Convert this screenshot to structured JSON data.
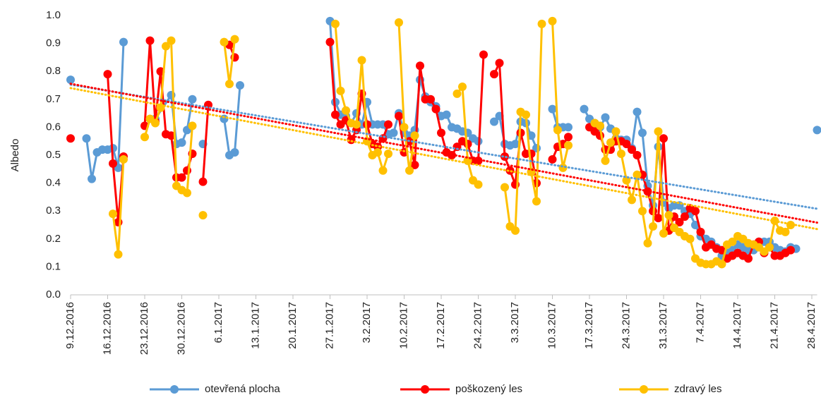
{
  "chart_data": {
    "type": "line",
    "y_label": "Albedo",
    "xlim": [
      "9.12.2016",
      "29.4.2017"
    ],
    "xticks": [
      "9.12.2016",
      "16.12.2016",
      "23.12.2016",
      "30.12.2016",
      "6.1.2017",
      "13.1.2017",
      "20.1.2017",
      "27.1.2017",
      "3.2.2017",
      "10.2.2017",
      "17.2.2017",
      "24.2.2017",
      "3.3.2017",
      "10.3.2017",
      "17.3.2017",
      "24.3.2017",
      "31.3.2017",
      "7.4.2017",
      "14.4.2017",
      "21.4.2017",
      "28.4.2017"
    ],
    "ylim": [
      0,
      1
    ],
    "yticks": [
      {
        "value": 0,
        "label": "0.0"
      },
      0.1,
      0.2,
      0.3,
      0.4,
      0.5,
      0.6,
      0.7,
      0.8,
      0.9,
      {
        "value": 1,
        "label": "1.0"
      }
    ],
    "grid": false,
    "legend": "bottom",
    "trendline": "linear",
    "series": [
      {
        "name": "otevřená plocha",
        "color": "#5b9bd5",
        "x": [
          "9.12.2016",
          "10.12.2016",
          "12.12.2016",
          "13.12.2016",
          "14.12.2016",
          "15.12.2016",
          "16.12.2016",
          "17.12.2016",
          "18.12.2016",
          "19.12.2016",
          "20.12.2016",
          "25.12.2016",
          "28.12.2016",
          "29.12.2016",
          "30.12.2016",
          "31.12.2016",
          "1.1.2017",
          "2.1.2017",
          "3.1.2017",
          "4.1.2017",
          "7.1.2017",
          "8.1.2017",
          "9.1.2017",
          "10.1.2017",
          "11.1.2017",
          "27.1.2017",
          "28.1.2017",
          "29.1.2017",
          "30.1.2017",
          "31.1.2017",
          "1.2.2017",
          "2.2.2017",
          "3.2.2017",
          "4.2.2017",
          "5.2.2017",
          "6.2.2017",
          "7.2.2017",
          "8.2.2017",
          "9.2.2017",
          "10.2.2017",
          "11.2.2017",
          "12.2.2017",
          "13.2.2017",
          "14.2.2017",
          "15.2.2017",
          "16.2.2017",
          "17.2.2017",
          "18.2.2017",
          "19.2.2017",
          "20.2.2017",
          "21.2.2017",
          "22.2.2017",
          "23.2.2017",
          "24.2.2017",
          "25.2.2017",
          "27.2.2017",
          "28.2.2017",
          "1.3.2017",
          "2.3.2017",
          "3.3.2017",
          "4.3.2017",
          "5.3.2017",
          "6.3.2017",
          "7.3.2017",
          "8.3.2017",
          "10.3.2017",
          "11.3.2017",
          "12.3.2017",
          "13.3.2017",
          "14.3.2017",
          "16.3.2017",
          "17.3.2017",
          "18.3.2017",
          "19.3.2017",
          "20.3.2017",
          "21.3.2017",
          "22.3.2017",
          "23.3.2017",
          "24.3.2017",
          "25.3.2017",
          "26.3.2017",
          "27.3.2017",
          "28.3.2017",
          "29.3.2017",
          "30.3.2017",
          "31.3.2017",
          "1.4.2017",
          "2.4.2017",
          "3.4.2017",
          "4.4.2017",
          "5.4.2017",
          "6.4.2017",
          "7.4.2017",
          "8.4.2017",
          "9.4.2017",
          "10.4.2017",
          "11.4.2017",
          "12.4.2017",
          "13.4.2017",
          "14.4.2017",
          "15.4.2017",
          "16.4.2017",
          "17.4.2017",
          "18.4.2017",
          "19.4.2017",
          "20.4.2017",
          "21.4.2017",
          "22.4.2017",
          "23.4.2017",
          "24.4.2017",
          "25.4.2017",
          "26.4.2017",
          "29.4.2017"
        ],
        "values": [
          0.77,
          null,
          0.56,
          0.415,
          0.51,
          0.52,
          0.52,
          0.525,
          0.455,
          0.905,
          null,
          0.63,
          0.715,
          0.54,
          0.545,
          0.59,
          0.7,
          null,
          0.54,
          null,
          0.63,
          0.5,
          0.51,
          0.75,
          null,
          0.98,
          0.69,
          0.645,
          0.64,
          0.615,
          0.65,
          0.61,
          0.69,
          0.61,
          0.61,
          0.61,
          0.575,
          0.58,
          0.65,
          0.58,
          0.57,
          0.59,
          0.77,
          0.71,
          0.69,
          0.675,
          0.64,
          0.645,
          0.6,
          0.595,
          0.585,
          0.58,
          0.56,
          0.55,
          null,
          0.62,
          0.64,
          0.54,
          0.535,
          0.54,
          0.62,
          0.615,
          0.57,
          0.525,
          null,
          0.665,
          0.6,
          0.6,
          0.6,
          null,
          0.665,
          0.63,
          0.615,
          0.6,
          0.635,
          0.595,
          0.56,
          0.555,
          0.555,
          0.525,
          0.655,
          0.58,
          0.39,
          0.32,
          0.53,
          0.33,
          0.31,
          0.32,
          0.32,
          0.3,
          0.29,
          0.25,
          0.21,
          0.2,
          0.19,
          0.17,
          0.14,
          0.15,
          0.16,
          0.18,
          0.17,
          0.16,
          0.16,
          0.19,
          0.19,
          0.19,
          0.17,
          0.16,
          0.155,
          0.17,
          0.165,
          null,
          0.59
        ]
      },
      {
        "name": "poškozený les",
        "color": "#ff0000",
        "x": [
          "9.12.2016",
          "10.12.2016",
          "16.12.2016",
          "17.12.2016",
          "18.12.2016",
          "19.12.2016",
          "20.12.2016",
          "23.12.2016",
          "24.12.2016",
          "25.12.2016",
          "26.12.2016",
          "27.12.2016",
          "28.12.2016",
          "29.12.2016",
          "30.12.2016",
          "31.12.2016",
          "1.1.2017",
          "2.1.2017",
          "3.1.2017",
          "4.1.2017",
          "5.1.2017",
          "8.1.2017",
          "9.1.2017",
          "10.1.2017",
          "27.1.2017",
          "28.1.2017",
          "29.1.2017",
          "30.1.2017",
          "31.1.2017",
          "1.2.2017",
          "2.2.2017",
          "3.2.2017",
          "4.2.2017",
          "5.2.2017",
          "6.2.2017",
          "7.2.2017",
          "8.2.2017",
          "9.2.2017",
          "10.2.2017",
          "11.2.2017",
          "12.2.2017",
          "13.2.2017",
          "14.2.2017",
          "15.2.2017",
          "16.2.2017",
          "17.2.2017",
          "18.2.2017",
          "19.2.2017",
          "20.2.2017",
          "21.2.2017",
          "22.2.2017",
          "23.2.2017",
          "24.2.2017",
          "25.2.2017",
          "26.2.2017",
          "27.2.2017",
          "28.2.2017",
          "1.3.2017",
          "2.3.2017",
          "3.3.2017",
          "4.3.2017",
          "5.3.2017",
          "6.3.2017",
          "7.3.2017",
          "8.3.2017",
          "10.3.2017",
          "11.3.2017",
          "12.3.2017",
          "13.3.2017",
          "14.3.2017",
          "17.3.2017",
          "18.3.2017",
          "19.3.2017",
          "20.3.2017",
          "21.3.2017",
          "22.3.2017",
          "23.3.2017",
          "24.3.2017",
          "25.3.2017",
          "26.3.2017",
          "27.3.2017",
          "28.3.2017",
          "29.3.2017",
          "30.3.2017",
          "31.3.2017",
          "1.4.2017",
          "2.4.2017",
          "3.4.2017",
          "4.4.2017",
          "5.4.2017",
          "6.4.2017",
          "7.4.2017",
          "8.4.2017",
          "9.4.2017",
          "10.4.2017",
          "11.4.2017",
          "12.4.2017",
          "13.4.2017",
          "14.4.2017",
          "15.4.2017",
          "16.4.2017",
          "17.4.2017",
          "18.4.2017",
          "19.4.2017",
          "20.4.2017",
          "21.4.2017",
          "22.4.2017",
          "23.4.2017",
          "24.4.2017"
        ],
        "values": [
          0.56,
          null,
          0.79,
          0.47,
          0.26,
          0.495,
          null,
          0.605,
          0.91,
          0.62,
          0.8,
          0.575,
          0.57,
          0.42,
          0.42,
          0.445,
          0.505,
          null,
          0.405,
          0.68,
          null,
          0.895,
          0.85,
          null,
          0.905,
          0.645,
          0.61,
          0.625,
          0.555,
          0.59,
          0.72,
          0.61,
          0.54,
          0.53,
          0.56,
          0.61,
          null,
          0.64,
          0.51,
          0.55,
          0.465,
          0.82,
          0.7,
          0.7,
          0.665,
          0.58,
          0.51,
          0.5,
          0.53,
          0.55,
          0.54,
          0.48,
          0.48,
          0.86,
          null,
          0.79,
          0.83,
          0.495,
          0.445,
          0.395,
          0.58,
          0.505,
          0.505,
          0.4,
          null,
          0.485,
          0.53,
          0.54,
          0.565,
          null,
          0.6,
          0.585,
          0.57,
          0.52,
          0.52,
          0.55,
          0.55,
          0.54,
          0.52,
          0.5,
          0.43,
          0.37,
          0.3,
          0.275,
          0.56,
          0.23,
          0.28,
          0.26,
          0.28,
          0.31,
          0.3,
          0.225,
          0.17,
          0.18,
          0.165,
          0.16,
          0.13,
          0.14,
          0.15,
          0.14,
          0.13,
          0.18,
          0.19,
          0.15,
          0.17,
          0.14,
          0.14,
          0.15,
          0.16
        ]
      },
      {
        "name": "zdravý les",
        "color": "#ffc000",
        "x": [
          "17.12.2016",
          "18.12.2016",
          "19.12.2016",
          "20.12.2016",
          "23.12.2016",
          "24.12.2016",
          "25.12.2016",
          "26.12.2016",
          "27.12.2016",
          "28.12.2016",
          "29.12.2016",
          "30.12.2016",
          "31.12.2016",
          "1.1.2017",
          "2.1.2017",
          "3.1.2017",
          "4.1.2017",
          "7.1.2017",
          "8.1.2017",
          "9.1.2017",
          "10.1.2017",
          "28.1.2017",
          "29.1.2017",
          "30.1.2017",
          "31.1.2017",
          "1.2.2017",
          "2.2.2017",
          "3.2.2017",
          "4.2.2017",
          "5.2.2017",
          "6.2.2017",
          "7.2.2017",
          "8.2.2017",
          "9.2.2017",
          "10.2.2017",
          "11.2.2017",
          "12.2.2017",
          "13.2.2017",
          "20.2.2017",
          "21.2.2017",
          "22.2.2017",
          "23.2.2017",
          "24.2.2017",
          "25.2.2017",
          "1.3.2017",
          "2.3.2017",
          "3.3.2017",
          "4.3.2017",
          "5.3.2017",
          "6.3.2017",
          "7.3.2017",
          "8.3.2017",
          "9.3.2017",
          "10.3.2017",
          "11.3.2017",
          "12.3.2017",
          "13.3.2017",
          "14.3.2017",
          "18.3.2017",
          "19.3.2017",
          "20.3.2017",
          "21.3.2017",
          "22.3.2017",
          "23.3.2017",
          "24.3.2017",
          "25.3.2017",
          "26.3.2017",
          "27.3.2017",
          "28.3.2017",
          "29.3.2017",
          "30.3.2017",
          "31.3.2017",
          "1.4.2017",
          "2.4.2017",
          "3.4.2017",
          "4.4.2017",
          "5.4.2017",
          "6.4.2017",
          "7.4.2017",
          "8.4.2017",
          "9.4.2017",
          "10.4.2017",
          "11.4.2017",
          "12.4.2017",
          "13.4.2017",
          "14.4.2017",
          "15.4.2017",
          "16.4.2017",
          "17.4.2017",
          "18.4.2017",
          "19.4.2017",
          "20.4.2017",
          "21.4.2017",
          "22.4.2017",
          "23.4.2017",
          "24.4.2017"
        ],
        "values": [
          0.29,
          0.145,
          0.485,
          null,
          0.565,
          0.63,
          0.615,
          0.67,
          0.89,
          0.91,
          0.39,
          0.375,
          0.365,
          0.605,
          null,
          0.285,
          null,
          0.905,
          0.755,
          0.915,
          null,
          0.97,
          0.73,
          0.66,
          0.615,
          0.61,
          0.84,
          0.55,
          0.5,
          0.51,
          0.445,
          0.505,
          null,
          0.975,
          0.6,
          0.445,
          0.57,
          null,
          0.72,
          0.745,
          0.48,
          0.41,
          0.395,
          null,
          0.385,
          0.245,
          0.23,
          0.655,
          0.645,
          0.44,
          0.335,
          0.97,
          null,
          0.98,
          0.59,
          0.455,
          0.535,
          null,
          0.615,
          0.605,
          0.48,
          0.545,
          0.585,
          0.505,
          0.41,
          0.34,
          0.43,
          0.3,
          0.185,
          0.245,
          0.585,
          0.22,
          0.285,
          0.24,
          0.225,
          0.21,
          0.2,
          0.13,
          0.115,
          0.11,
          0.11,
          0.12,
          0.11,
          0.18,
          0.19,
          0.21,
          0.2,
          0.185,
          0.18,
          0.17,
          0.155,
          0.17,
          0.265,
          0.23,
          0.225,
          0.25
        ]
      }
    ]
  }
}
